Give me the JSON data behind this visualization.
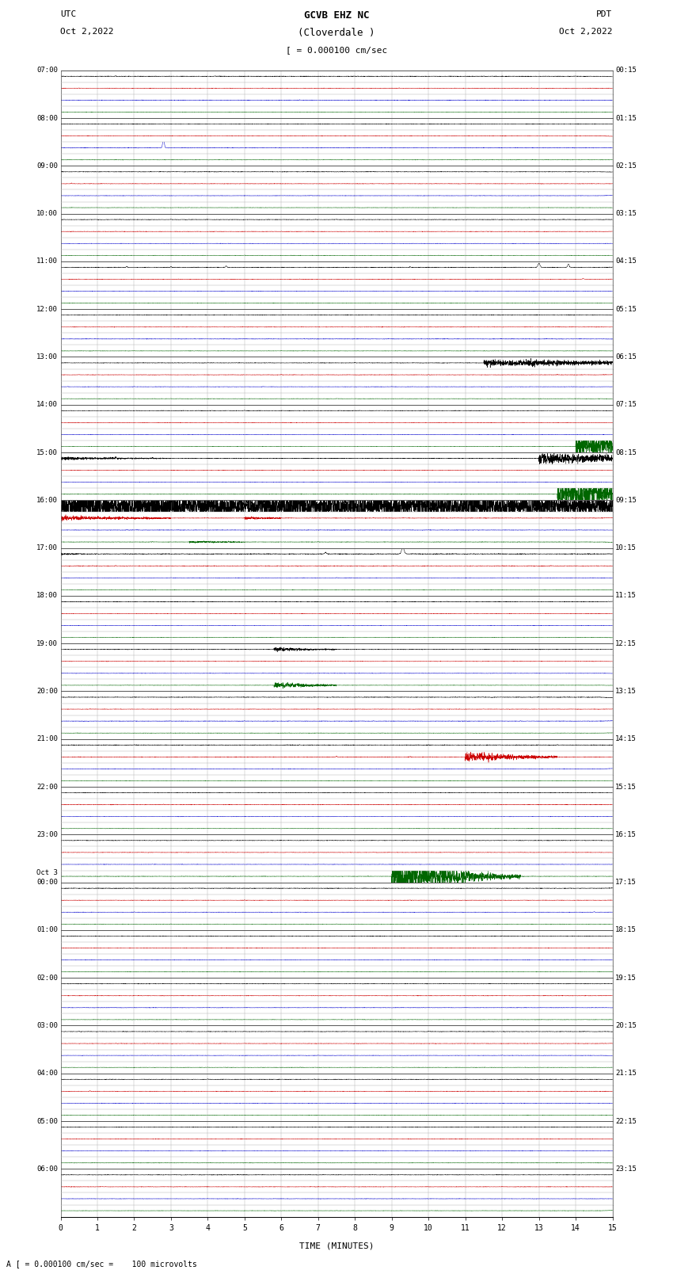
{
  "title_line1": "GCVB EHZ NC",
  "title_line2": "(Cloverdale )",
  "title_scale": "[ = 0.000100 cm/sec",
  "left_label_top": "UTC",
  "left_label_date": "Oct 2,2022",
  "right_label_top": "PDT",
  "right_label_date": "Oct 2,2022",
  "bottom_label": "TIME (MINUTES)",
  "bottom_note": "A [ = 0.000100 cm/sec =    100 microvolts",
  "xlabel_ticks": [
    0,
    1,
    2,
    3,
    4,
    5,
    6,
    7,
    8,
    9,
    10,
    11,
    12,
    13,
    14,
    15
  ],
  "background_color": "#ffffff",
  "grid_color": "#aaaaaa",
  "trace_colors": [
    "#000000",
    "#cc0000",
    "#0000cc",
    "#006600"
  ],
  "fig_width": 8.5,
  "fig_height": 16.13,
  "dpi": 100,
  "x_min": 0,
  "x_max": 15
}
